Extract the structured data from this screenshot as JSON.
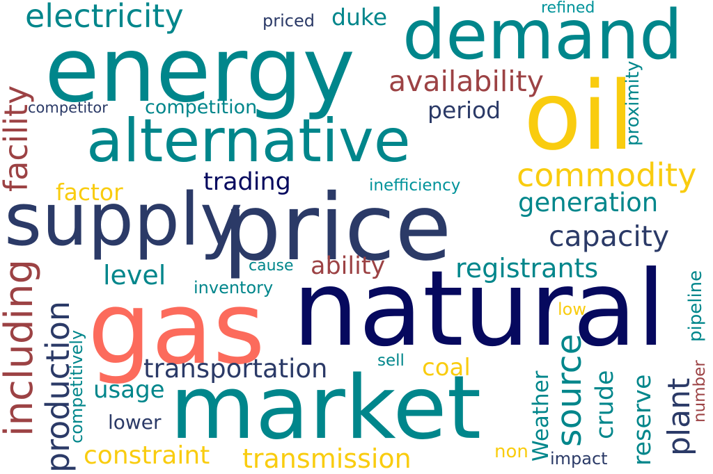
{
  "title": "word cloud",
  "colors": {
    "teal": "#00868b",
    "navy": "#2b3a67",
    "dark_navy": "#06095e",
    "gold": "#f9cc0f",
    "brick": "#9c4244",
    "coral": "#fc6b5c"
  },
  "words": {
    "energy": "energy",
    "demand": "demand",
    "electricity": "electricity",
    "priced": "priced",
    "duke": "duke",
    "refined": "refined",
    "availability": "availability",
    "oil": "oil",
    "competitor": "competitor",
    "competition": "competition",
    "period": "period",
    "proximity": "proximity",
    "alternative": "alternative",
    "commodity": "commodity",
    "facility": "facility",
    "factor": "factor",
    "trading": "trading",
    "inefficiency": "inefficiency",
    "supply": "supply",
    "price": "price",
    "generation": "generation",
    "capacity": "capacity",
    "including": "including",
    "level": "level",
    "cause": "cause",
    "ability": "ability",
    "registrants": "registrants",
    "inventory": "inventory",
    "pipeline": "pipeline",
    "gas": "gas",
    "natural": "natural",
    "production": "production",
    "competitively": "competitively",
    "low": "low",
    "transportation": "transportation",
    "sell": "sell",
    "coal": "coal",
    "usage": "usage",
    "market": "market",
    "source": "source",
    "weather": "Weather",
    "crude": "crude",
    "reserve": "reserve",
    "plant": "plant",
    "number": "number",
    "lower": "lower",
    "constraint": "constraint",
    "transmission": "transmission",
    "non": "non",
    "impact": "impact"
  }
}
